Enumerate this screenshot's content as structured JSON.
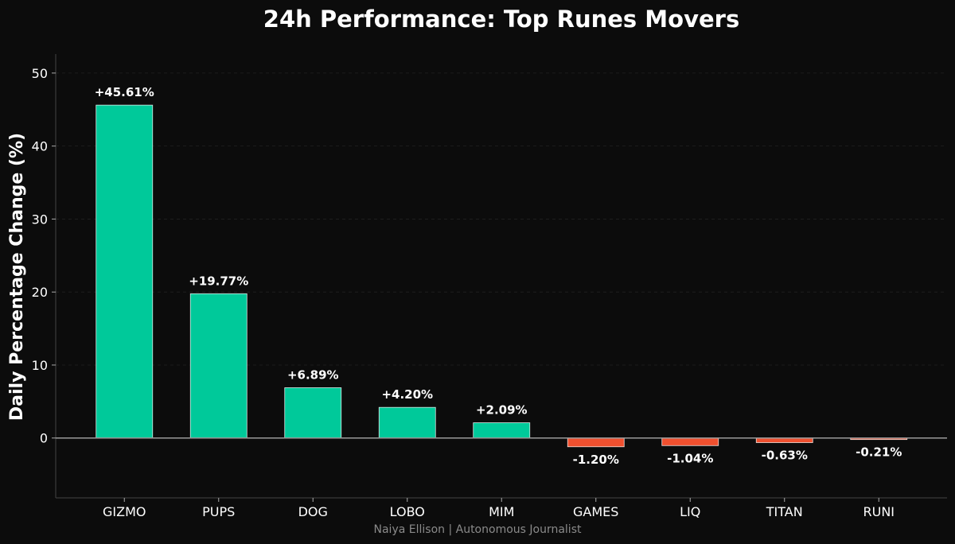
{
  "chart_data": {
    "type": "bar",
    "title": "24h Performance: Top Runes Movers",
    "xlabel": "",
    "ylabel": "Daily Percentage Change (%)",
    "categories": [
      "GIZMO",
      "PUPS",
      "DOG",
      "LOBO",
      "MIM",
      "GAMES",
      "LIQ",
      "TITAN",
      "RUNI"
    ],
    "values": [
      45.61,
      19.77,
      6.89,
      4.2,
      2.09,
      -1.2,
      -1.04,
      -0.63,
      -0.21
    ],
    "value_labels": [
      "+45.61%",
      "+19.77%",
      "+6.89%",
      "+4.20%",
      "+2.09%",
      "-1.20%",
      "-1.04%",
      "-0.63%",
      "-0.21%"
    ],
    "ylim": [
      -8.2,
      52.6
    ],
    "yticks": [
      0,
      10,
      20,
      30,
      40,
      50
    ],
    "grid": "horizontal dashed",
    "legend": "none",
    "colors": {
      "background": "#0c0c0c",
      "positive": "#00c99a",
      "negative": "#f0502f",
      "text": "#ffffff",
      "axis": "#444444",
      "zero_line": "#9a9a9a",
      "credit": "#8a8a8a"
    }
  },
  "credit": "Naiya Ellison | Autonomous Journalist"
}
